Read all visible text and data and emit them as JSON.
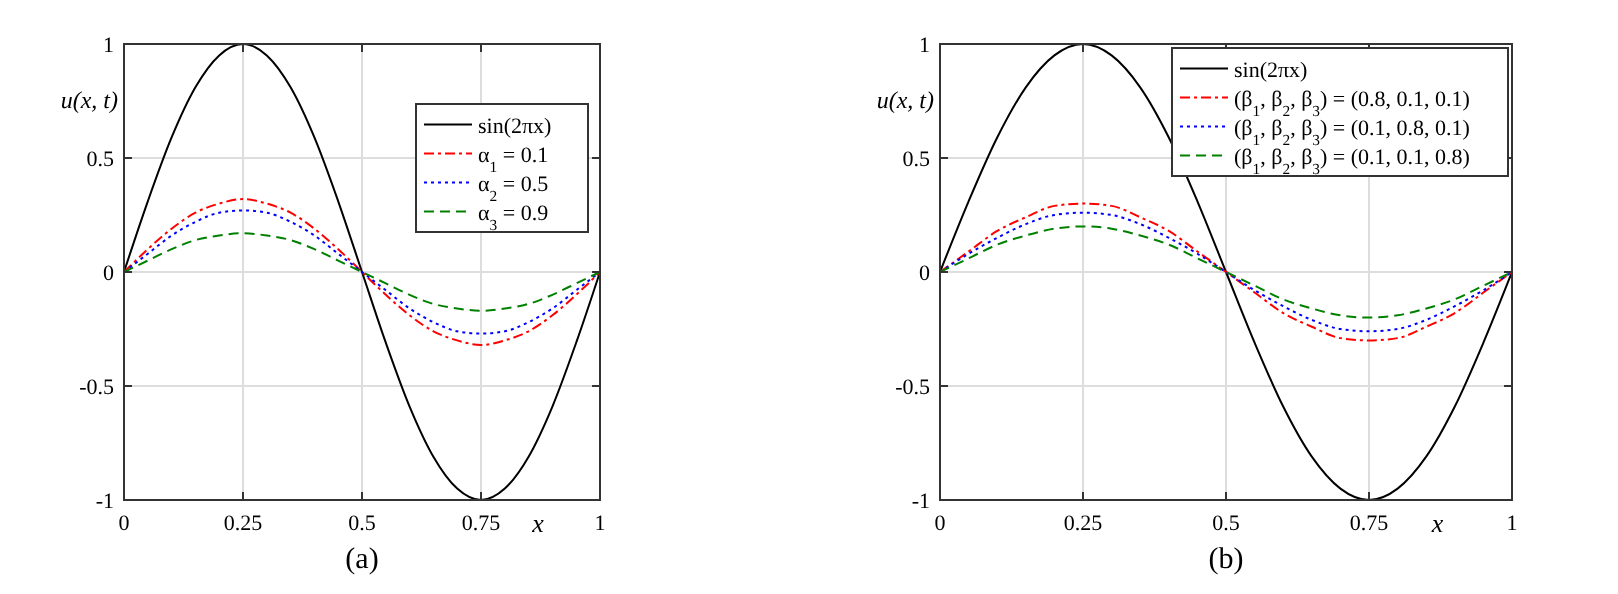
{
  "chart_data": [
    {
      "type": "line",
      "title": "(a)",
      "xlabel": "x",
      "ylabel": "u(x, t)",
      "x": [
        0,
        0.05,
        0.1,
        0.15,
        0.2,
        0.25,
        0.3,
        0.35,
        0.4,
        0.45,
        0.5,
        0.55,
        0.6,
        0.65,
        0.7,
        0.75,
        0.8,
        0.85,
        0.9,
        0.95,
        1
      ],
      "xlim": [
        0,
        1
      ],
      "ylim": [
        -1,
        1
      ],
      "xticks": [
        0,
        0.25,
        0.5,
        0.75,
        1
      ],
      "yticks": [
        -1,
        -0.5,
        0,
        0.5,
        1
      ],
      "grid": true,
      "legend": "top right",
      "series": [
        {
          "name": "sin(2πx)",
          "color": "#000000",
          "line_style": "solid",
          "values": [
            0,
            0.31,
            0.59,
            0.81,
            0.95,
            1,
            0.95,
            0.81,
            0.59,
            0.31,
            0,
            -0.31,
            -0.59,
            -0.81,
            -0.95,
            -1,
            -0.95,
            -0.81,
            -0.59,
            -0.31,
            0
          ]
        },
        {
          "name": "α$_{1}$ = 0.1",
          "color": "#ff0000",
          "line_style": "dashdot",
          "values": [
            0,
            0.1,
            0.19,
            0.26,
            0.3,
            0.32,
            0.3,
            0.26,
            0.19,
            0.1,
            0,
            -0.1,
            -0.19,
            -0.26,
            -0.3,
            -0.32,
            -0.3,
            -0.26,
            -0.19,
            -0.1,
            0
          ]
        },
        {
          "name": "α$_{2}$ = 0.5",
          "color": "#0000ff",
          "line_style": "dotted",
          "values": [
            0,
            0.08,
            0.16,
            0.22,
            0.26,
            0.27,
            0.26,
            0.22,
            0.16,
            0.08,
            0,
            -0.08,
            -0.16,
            -0.22,
            -0.26,
            -0.27,
            -0.26,
            -0.22,
            -0.16,
            -0.08,
            0
          ]
        },
        {
          "name": "α$_{3}$ = 0.9",
          "color": "#008000",
          "line_style": "dashed",
          "values": [
            0,
            0.05,
            0.1,
            0.14,
            0.16,
            0.17,
            0.16,
            0.14,
            0.1,
            0.05,
            0,
            -0.05,
            -0.1,
            -0.14,
            -0.16,
            -0.17,
            -0.16,
            -0.14,
            -0.1,
            -0.05,
            0
          ]
        }
      ]
    },
    {
      "type": "line",
      "title": "(b)",
      "xlabel": "x",
      "ylabel": "u(x, t)",
      "x": [
        0,
        0.05,
        0.1,
        0.15,
        0.2,
        0.25,
        0.3,
        0.35,
        0.4,
        0.45,
        0.5,
        0.55,
        0.6,
        0.65,
        0.7,
        0.75,
        0.8,
        0.85,
        0.9,
        0.95,
        1
      ],
      "xlim": [
        0,
        1
      ],
      "ylim": [
        -1,
        1
      ],
      "xticks": [
        0,
        0.25,
        0.5,
        0.75,
        1
      ],
      "yticks": [
        -1,
        -0.5,
        0,
        0.5,
        1
      ],
      "grid": true,
      "legend": "top right",
      "series": [
        {
          "name": "sin(2πx)",
          "color": "#000000",
          "line_style": "solid",
          "values": [
            0,
            0.31,
            0.59,
            0.81,
            0.95,
            1,
            0.95,
            0.81,
            0.59,
            0.31,
            0,
            -0.31,
            -0.59,
            -0.81,
            -0.95,
            -1,
            -0.95,
            -0.81,
            -0.59,
            -0.31,
            0
          ]
        },
        {
          "name": "(β$_{1}$, β$_{2}$, β$_{3}$) = (0.8, 0.1, 0.1)",
          "color": "#ff0000",
          "line_style": "dashdot",
          "values": [
            0,
            0.09,
            0.18,
            0.24,
            0.29,
            0.3,
            0.29,
            0.24,
            0.18,
            0.09,
            0,
            -0.09,
            -0.18,
            -0.24,
            -0.29,
            -0.3,
            -0.29,
            -0.24,
            -0.18,
            -0.09,
            0
          ]
        },
        {
          "name": "(β$_{1}$, β$_{2}$, β$_{3}$) = (0.1, 0.8, 0.1)",
          "color": "#0000ff",
          "line_style": "dotted",
          "values": [
            0,
            0.08,
            0.15,
            0.21,
            0.25,
            0.26,
            0.25,
            0.21,
            0.15,
            0.08,
            0,
            -0.08,
            -0.15,
            -0.21,
            -0.25,
            -0.26,
            -0.25,
            -0.21,
            -0.15,
            -0.08,
            0
          ]
        },
        {
          "name": "(β$_{1}$, β$_{2}$, β$_{3}$) = (0.1, 0.1, 0.8)",
          "color": "#008000",
          "line_style": "dashed",
          "values": [
            0,
            0.06,
            0.12,
            0.16,
            0.19,
            0.2,
            0.19,
            0.16,
            0.12,
            0.06,
            0,
            -0.06,
            -0.12,
            -0.16,
            -0.19,
            -0.2,
            -0.19,
            -0.16,
            -0.12,
            -0.06,
            0
          ]
        }
      ]
    }
  ]
}
